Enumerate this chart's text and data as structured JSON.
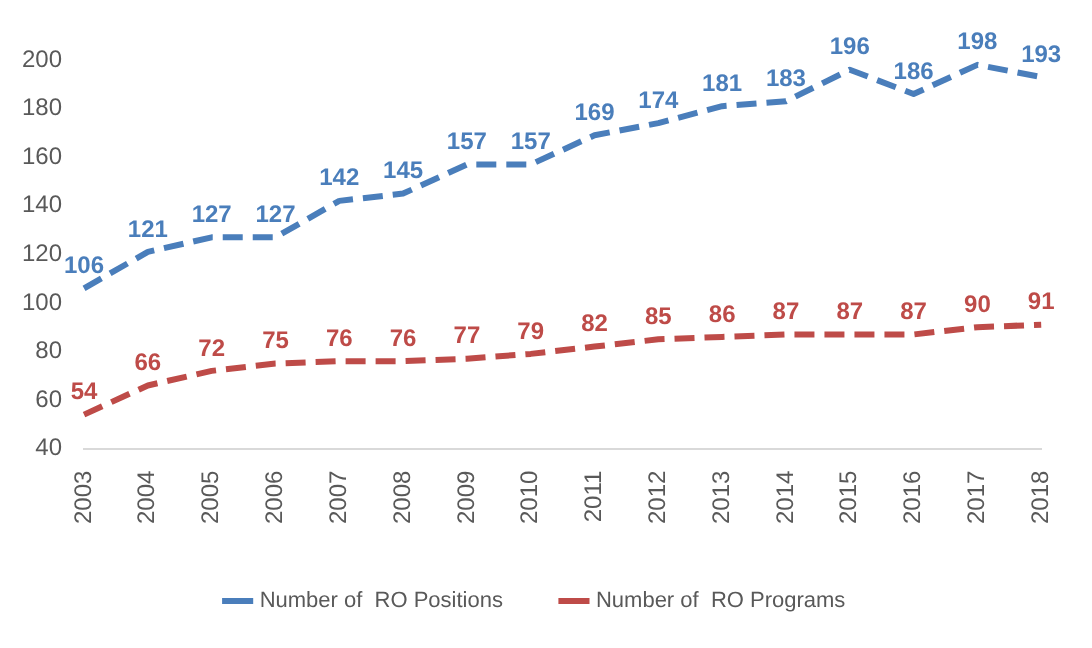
{
  "chart_data": {
    "type": "line",
    "categories": [
      "2003",
      "2004",
      "2005",
      "2006",
      "2007",
      "2008",
      "2009",
      "2010",
      "2011",
      "2012",
      "2013",
      "2014",
      "2015",
      "2016",
      "2017",
      "2018"
    ],
    "series": [
      {
        "name": "Number of  RO Positions",
        "color": "#4a7ebb",
        "values": [
          106,
          121,
          127,
          127,
          142,
          145,
          157,
          157,
          169,
          174,
          181,
          183,
          196,
          186,
          198,
          193
        ]
      },
      {
        "name": "Number of  RO Programs",
        "color": "#be4b48",
        "values": [
          54,
          66,
          72,
          75,
          76,
          76,
          77,
          79,
          82,
          85,
          86,
          87,
          87,
          87,
          90,
          91
        ]
      }
    ],
    "ylim": [
      40,
      200
    ],
    "yticks": [
      40,
      60,
      80,
      100,
      120,
      140,
      160,
      180,
      200
    ],
    "grid": false,
    "legend": "bottom",
    "line_style": "dashed",
    "marker": "none",
    "data_labels": true
  }
}
